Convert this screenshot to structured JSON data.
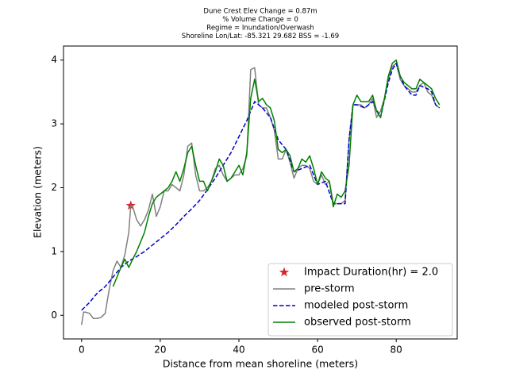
{
  "chart_data": {
    "type": "line",
    "title": [
      "Dune Crest Elev Change = 0.87m",
      "% Volume Change = 0",
      "Regime = Inundation/Overwash",
      "Shoreline Lon/Lat: -85.321 29.682   BSS = -1.69"
    ],
    "x_label": "Distance from mean shoreline (meters)",
    "y_label": "Elevation (meters)",
    "xlim": [
      -4.6,
      95.5
    ],
    "ylim": [
      -0.37,
      4.22
    ],
    "xticks": [
      0,
      20,
      40,
      60,
      80
    ],
    "yticks": [
      0,
      1,
      2,
      3,
      4
    ],
    "legend": "lower right",
    "series": [
      {
        "name": "Impact Duration(hr) = 2.0",
        "type": "scatter",
        "marker": "star",
        "color": "#d62728",
        "x": [
          12.5
        ],
        "values": [
          1.72
        ]
      },
      {
        "name": "pre-storm",
        "color": "#808080",
        "linestyle": "solid",
        "x": [
          0,
          0.5,
          1,
          2,
          3,
          4,
          5,
          6,
          7,
          8,
          9,
          10,
          11,
          12,
          12.5,
          13,
          14,
          15,
          16,
          17,
          18,
          19,
          20,
          21,
          22,
          23,
          24,
          25,
          26,
          27,
          28,
          29,
          30,
          31,
          32,
          33,
          34,
          35,
          36,
          37,
          38,
          39,
          40,
          41,
          42,
          43,
          44,
          45,
          46,
          47,
          48,
          49,
          50,
          51,
          52,
          53,
          54,
          55,
          56,
          57,
          58,
          59,
          60,
          61,
          62,
          63,
          64,
          65,
          66,
          67,
          68,
          69,
          70,
          71,
          72,
          73,
          74,
          75,
          76,
          77,
          78,
          79,
          80,
          81,
          82,
          83,
          84,
          85,
          86,
          87,
          88,
          89,
          90,
          91
        ],
        "values": [
          -0.15,
          0.05,
          0.05,
          0.03,
          -0.05,
          -0.05,
          -0.03,
          0.03,
          0.4,
          0.7,
          0.85,
          0.75,
          0.95,
          1.3,
          1.72,
          1.7,
          1.5,
          1.4,
          1.5,
          1.65,
          1.9,
          1.55,
          1.7,
          1.95,
          1.95,
          2.05,
          2.0,
          1.95,
          2.2,
          2.65,
          2.7,
          2.2,
          1.95,
          1.95,
          2.0,
          2.1,
          2.3,
          2.35,
          2.2,
          2.1,
          2.15,
          2.2,
          2.2,
          2.3,
          2.5,
          3.85,
          3.88,
          3.3,
          3.25,
          3.25,
          3.1,
          2.9,
          2.45,
          2.45,
          2.6,
          2.4,
          2.15,
          2.3,
          2.35,
          2.35,
          2.3,
          2.1,
          2.05,
          2.2,
          2.05,
          2.1,
          1.75,
          1.75,
          1.75,
          1.8,
          2.75,
          3.3,
          3.3,
          3.3,
          3.25,
          3.3,
          3.4,
          3.1,
          3.2,
          3.4,
          3.7,
          3.9,
          3.95,
          3.7,
          3.6,
          3.55,
          3.5,
          3.5,
          3.6,
          3.65,
          3.5,
          3.45,
          3.3,
          3.25
        ]
      },
      {
        "name": "modeled post-storm",
        "color": "#0000cc",
        "linestyle": "dashed",
        "x": [
          0,
          2,
          4,
          6,
          8,
          10,
          12,
          14,
          16,
          18,
          20,
          22,
          24,
          26,
          28,
          30,
          32,
          34,
          36,
          38,
          40,
          42,
          44,
          46,
          48,
          50,
          52,
          54,
          56,
          58,
          60,
          62,
          64,
          66,
          67,
          68,
          69,
          70,
          72,
          74,
          76,
          78,
          79,
          80,
          81,
          82,
          84,
          85,
          86,
          88,
          89,
          90,
          91
        ],
        "values": [
          0.08,
          0.2,
          0.35,
          0.45,
          0.6,
          0.75,
          0.85,
          0.92,
          1.0,
          1.1,
          1.2,
          1.3,
          1.42,
          1.55,
          1.67,
          1.8,
          1.97,
          2.15,
          2.35,
          2.55,
          2.8,
          3.05,
          3.35,
          3.25,
          3.1,
          2.75,
          2.6,
          2.25,
          2.3,
          2.35,
          2.05,
          2.1,
          1.75,
          1.75,
          1.75,
          2.75,
          3.3,
          3.3,
          3.25,
          3.35,
          3.1,
          3.65,
          3.85,
          3.95,
          3.75,
          3.6,
          3.45,
          3.45,
          3.6,
          3.55,
          3.5,
          3.3,
          3.25
        ]
      },
      {
        "name": "observed post-storm",
        "color": "#008000",
        "linestyle": "solid",
        "x": [
          8,
          9,
          10,
          11,
          12,
          13,
          14,
          15,
          16,
          17,
          18,
          19,
          20,
          21,
          22,
          23,
          24,
          25,
          26,
          27,
          28,
          29,
          30,
          31,
          32,
          33,
          34,
          35,
          36,
          37,
          38,
          39,
          40,
          41,
          42,
          43,
          44,
          45,
          46,
          47,
          48,
          49,
          50,
          51,
          52,
          53,
          54,
          55,
          56,
          57,
          58,
          59,
          60,
          61,
          62,
          63,
          64,
          65,
          66,
          67,
          68,
          69,
          70,
          71,
          72,
          73,
          74,
          75,
          76,
          77,
          78,
          79,
          80,
          81,
          82,
          83,
          84,
          85,
          86,
          87,
          88,
          89,
          90,
          91
        ],
        "values": [
          0.45,
          0.6,
          0.75,
          0.88,
          0.75,
          0.88,
          1.0,
          1.15,
          1.3,
          1.55,
          1.75,
          1.85,
          1.9,
          1.95,
          2.0,
          2.1,
          2.25,
          2.1,
          2.3,
          2.55,
          2.65,
          2.35,
          2.1,
          2.1,
          1.95,
          2.1,
          2.25,
          2.45,
          2.35,
          2.1,
          2.15,
          2.25,
          2.35,
          2.2,
          2.55,
          3.4,
          3.7,
          3.35,
          3.4,
          3.3,
          3.25,
          3.05,
          2.6,
          2.55,
          2.6,
          2.5,
          2.25,
          2.3,
          2.45,
          2.4,
          2.5,
          2.3,
          2.05,
          2.25,
          2.15,
          2.1,
          1.7,
          1.9,
          1.85,
          1.95,
          2.35,
          3.3,
          3.45,
          3.35,
          3.35,
          3.35,
          3.45,
          3.2,
          3.1,
          3.4,
          3.75,
          3.95,
          4.0,
          3.75,
          3.65,
          3.6,
          3.55,
          3.55,
          3.7,
          3.65,
          3.6,
          3.55,
          3.4,
          3.3
        ]
      }
    ]
  }
}
